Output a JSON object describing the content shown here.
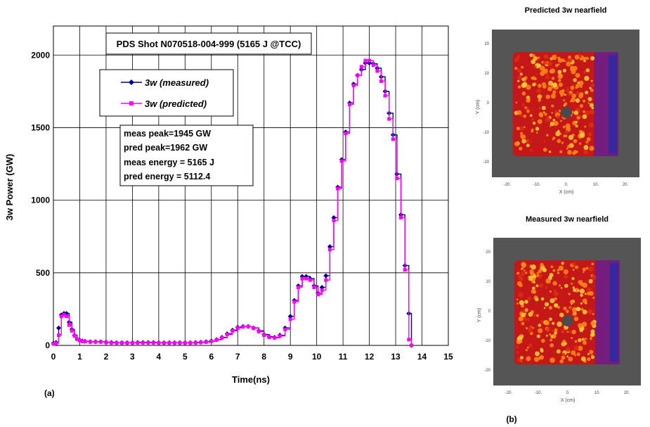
{
  "chart_data": [
    {
      "type": "line",
      "title": "PDS Shot N070518-004-999 (5165 J @TCC)",
      "xlabel": "Time(ns)",
      "ylabel": "3w Power (GW)",
      "xlim": [
        0,
        15
      ],
      "ylim": [
        0,
        2200
      ],
      "x_ticks": [
        0,
        1,
        2,
        3,
        4,
        5,
        6,
        7,
        8,
        9,
        10,
        11,
        12,
        13,
        14,
        15
      ],
      "y_ticks": [
        0,
        500,
        1000,
        1500,
        2000
      ],
      "grid": true,
      "legend_position": "top-left",
      "panel_label": "(a)",
      "series": [
        {
          "name": "3w (measured)",
          "color": "#000080",
          "marker": "diamond",
          "x": [
            0,
            0.1,
            0.2,
            0.3,
            0.4,
            0.5,
            0.6,
            0.7,
            0.8,
            0.9,
            1.0,
            1.1,
            1.2,
            1.4,
            1.6,
            1.8,
            2.0,
            2.2,
            2.4,
            2.6,
            2.8,
            3.0,
            3.2,
            3.4,
            3.6,
            3.8,
            4.0,
            4.2,
            4.4,
            4.6,
            4.8,
            5.0,
            5.2,
            5.4,
            5.6,
            5.8,
            6.0,
            6.2,
            6.4,
            6.6,
            6.8,
            7.0,
            7.2,
            7.4,
            7.6,
            7.8,
            8.0,
            8.2,
            8.4,
            8.6,
            8.8,
            9.0,
            9.15,
            9.3,
            9.45,
            9.6,
            9.75,
            9.9,
            10.05,
            10.2,
            10.35,
            10.5,
            10.65,
            10.8,
            10.95,
            11.1,
            11.25,
            11.4,
            11.55,
            11.7,
            11.85,
            12.0,
            12.15,
            12.3,
            12.45,
            12.6,
            12.75,
            12.9,
            13.05,
            13.2,
            13.35,
            13.5,
            13.6
          ],
          "y": [
            15,
            20,
            120,
            210,
            220,
            220,
            160,
            110,
            70,
            45,
            35,
            30,
            28,
            25,
            25,
            25,
            22,
            20,
            18,
            18,
            18,
            18,
            20,
            20,
            20,
            20,
            18,
            18,
            18,
            18,
            18,
            18,
            18,
            20,
            22,
            25,
            30,
            40,
            55,
            80,
            105,
            125,
            130,
            130,
            120,
            100,
            75,
            60,
            55,
            70,
            120,
            200,
            310,
            410,
            475,
            475,
            460,
            410,
            360,
            400,
            480,
            680,
            880,
            1090,
            1280,
            1470,
            1670,
            1800,
            1860,
            1900,
            1945,
            1945,
            1940,
            1910,
            1850,
            1750,
            1600,
            1450,
            1180,
            900,
            550,
            220,
            0
          ]
        },
        {
          "name": "3w (predicted)",
          "color": "#ff00ff",
          "marker": "square",
          "x": [
            0,
            0.1,
            0.2,
            0.3,
            0.4,
            0.5,
            0.6,
            0.7,
            0.8,
            0.9,
            1.0,
            1.1,
            1.2,
            1.4,
            1.6,
            1.8,
            2.0,
            2.2,
            2.4,
            2.6,
            2.8,
            3.0,
            3.2,
            3.4,
            3.6,
            3.8,
            4.0,
            4.2,
            4.4,
            4.6,
            4.8,
            5.0,
            5.2,
            5.4,
            5.6,
            5.8,
            6.0,
            6.2,
            6.4,
            6.6,
            6.8,
            7.0,
            7.2,
            7.4,
            7.6,
            7.8,
            8.0,
            8.2,
            8.4,
            8.6,
            8.8,
            9.0,
            9.15,
            9.3,
            9.45,
            9.6,
            9.75,
            9.9,
            10.05,
            10.2,
            10.35,
            10.5,
            10.65,
            10.8,
            10.95,
            11.1,
            11.25,
            11.4,
            11.55,
            11.7,
            11.85,
            12.0,
            12.15,
            12.3,
            12.45,
            12.6,
            12.75,
            12.9,
            13.05,
            13.2,
            13.35,
            13.5,
            13.6
          ],
          "y": [
            10,
            15,
            70,
            200,
            210,
            200,
            140,
            100,
            65,
            42,
            33,
            28,
            26,
            24,
            24,
            24,
            20,
            18,
            17,
            17,
            17,
            17,
            18,
            18,
            18,
            18,
            17,
            17,
            17,
            17,
            17,
            17,
            17,
            18,
            20,
            23,
            28,
            38,
            52,
            75,
            100,
            120,
            128,
            130,
            118,
            95,
            70,
            55,
            52,
            65,
            110,
            180,
            300,
            400,
            460,
            460,
            450,
            400,
            350,
            380,
            450,
            660,
            860,
            1080,
            1270,
            1460,
            1660,
            1790,
            1860,
            1920,
            1962,
            1962,
            1930,
            1890,
            1820,
            1720,
            1560,
            1420,
            1150,
            880,
            520,
            40,
            0
          ]
        }
      ],
      "legend": [
        "3w (measured)",
        "3w (predicted)"
      ],
      "annotations": [
        "meas peak=1945 GW",
        "pred peak=1962 GW",
        "meas energy = 5165 J",
        "pred energy = 5112.4"
      ]
    },
    {
      "type": "heatmap",
      "title": "Predicted 3w nearfield",
      "xlabel": "X (cm)",
      "ylabel": "Y (cm)",
      "x_ticks": [
        "-20.",
        "-10.",
        "0.",
        "10.",
        "20."
      ],
      "y_ticks": [
        "20",
        "10",
        "0",
        "-10",
        "-20"
      ]
    },
    {
      "type": "heatmap",
      "title": "Measured 3w nearfield",
      "xlabel": "X (cm)",
      "ylabel": "Y (cm)",
      "x_ticks": [
        "-20.",
        "-10.",
        "0.",
        "10.",
        "20."
      ],
      "y_ticks": [
        "20",
        "10",
        "0",
        "-10",
        "-20"
      ],
      "panel_label": "(b)"
    }
  ]
}
